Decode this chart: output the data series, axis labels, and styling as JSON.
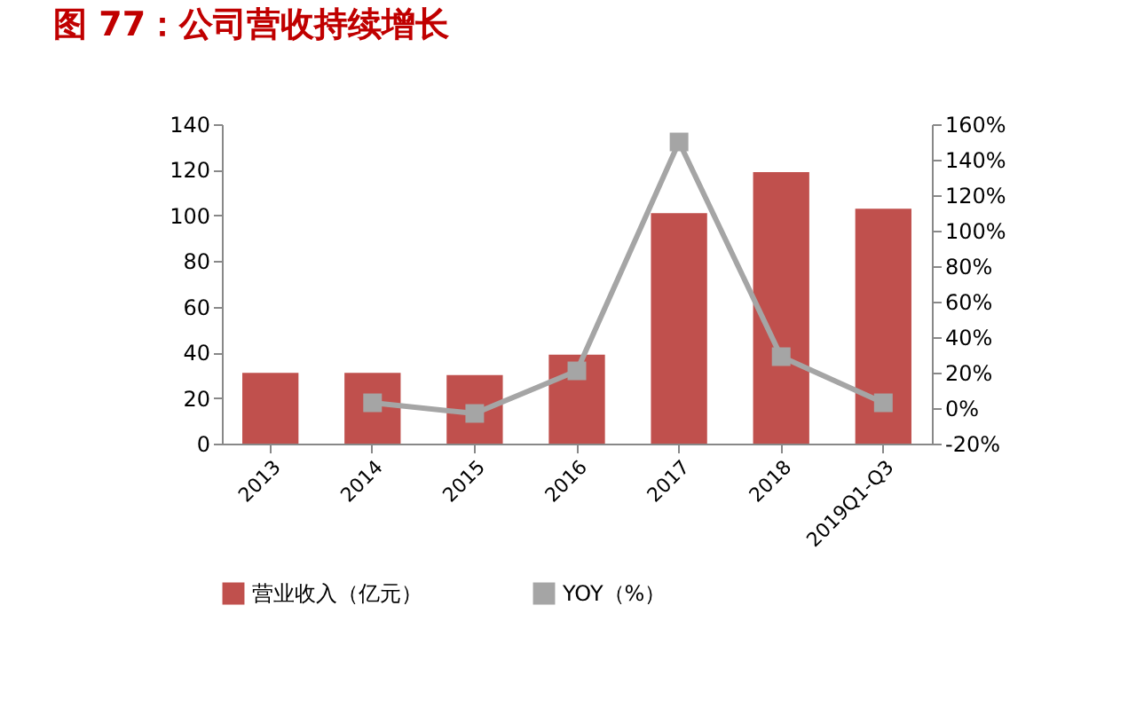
{
  "chart_data": {
    "type": "bar",
    "title": "图 77：公司营收持续增长",
    "categories": [
      "2013",
      "2014",
      "2015",
      "2016",
      "2017",
      "2018",
      "2019Q1-Q3"
    ],
    "series": [
      {
        "name": "营业收入（亿元）",
        "color": "#c0504d",
        "values": [
          31,
          31,
          30,
          39,
          101,
          119,
          103
        ]
      },
      {
        "name": "YOY（%）",
        "type": "line",
        "axis": "y2",
        "color": "#a5a5a5",
        "values": [
          null,
          3,
          -3,
          21,
          150,
          29,
          3
        ]
      }
    ],
    "ylim": [
      0,
      140
    ],
    "yticks": [
      0,
      20,
      40,
      60,
      80,
      100,
      120,
      140
    ],
    "y2lim": [
      -20,
      160
    ],
    "y2ticks": [
      {
        "value": -20,
        "label": "-20%"
      },
      {
        "value": 0,
        "label": "0%"
      },
      {
        "value": 20,
        "label": "20%"
      },
      {
        "value": 40,
        "label": "40%"
      },
      {
        "value": 60,
        "label": "60%"
      },
      {
        "value": 80,
        "label": "80%"
      },
      {
        "value": 100,
        "label": "100%"
      },
      {
        "value": 120,
        "label": "120%"
      },
      {
        "value": 140,
        "label": "140%"
      },
      {
        "value": 160,
        "label": "160%"
      }
    ],
    "legend": "bottom",
    "marker": "square"
  }
}
